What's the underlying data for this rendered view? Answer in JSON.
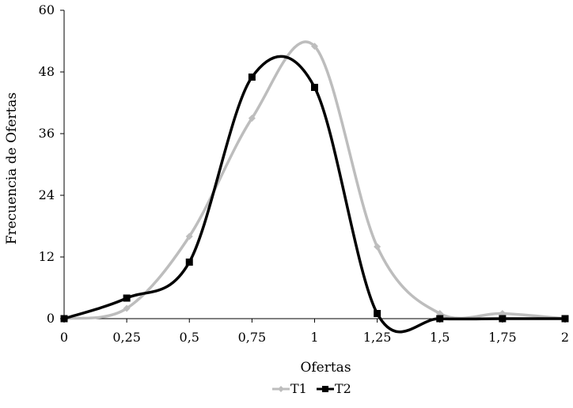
{
  "chart_data": {
    "type": "line",
    "title": "",
    "xlabel": "Ofertas",
    "ylabel": "Frecuencia de Ofertas",
    "xlim": [
      0,
      2
    ],
    "ylim": [
      0,
      60
    ],
    "x_ticks": [
      0,
      0.25,
      0.5,
      0.75,
      1,
      1.25,
      1.5,
      1.75,
      2
    ],
    "x_tick_labels": [
      "0",
      "0,25",
      "0,5",
      "0,75",
      "1",
      "1,25",
      "1,5",
      "1,75",
      "2"
    ],
    "y_ticks": [
      0,
      12,
      24,
      36,
      48,
      60
    ],
    "y_tick_labels": [
      "0",
      "12",
      "24",
      "36",
      "48",
      "60"
    ],
    "grid": false,
    "smooth": true,
    "legend_position": "bottom",
    "x": [
      0,
      0.25,
      0.5,
      0.75,
      1,
      1.25,
      1.5,
      1.75,
      2
    ],
    "series": [
      {
        "name": "T1",
        "color": "#bdbdbd",
        "marker": "diamond",
        "values": [
          0,
          2,
          16,
          39,
          53,
          14,
          1,
          1,
          0
        ]
      },
      {
        "name": "T2",
        "color": "#000000",
        "marker": "square",
        "values": [
          0,
          4,
          11,
          47,
          45,
          1,
          0,
          0,
          0
        ]
      }
    ]
  }
}
